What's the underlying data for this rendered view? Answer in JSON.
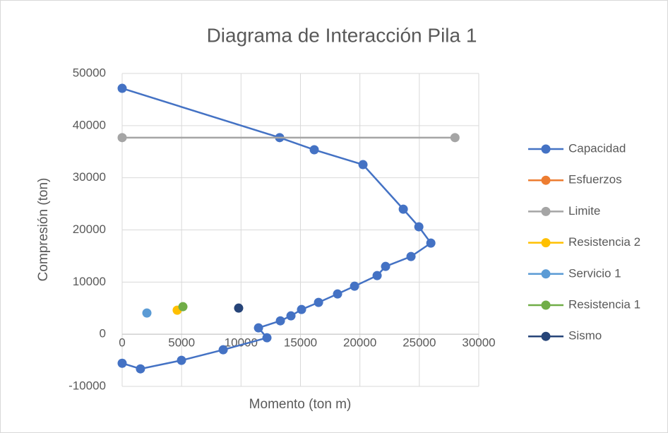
{
  "chart_data": {
    "type": "scatter",
    "title": "Diagrama de Interacción Pila 1",
    "xlabel": "Momento (ton m)",
    "ylabel": "Compresión (ton)",
    "xlim": [
      0,
      30000
    ],
    "xticks": [
      0,
      5000,
      10000,
      15000,
      20000,
      25000,
      30000
    ],
    "ylim": [
      -10000,
      50000
    ],
    "yticks": [
      -10000,
      0,
      10000,
      20000,
      30000,
      40000,
      50000
    ],
    "grid": true,
    "legend": "right",
    "series": [
      {
        "name": "Capacidad",
        "color": "#4472c4",
        "x": [
          0,
          13250,
          16160,
          20260,
          23650,
          24960,
          25970,
          24300,
          22160,
          21450,
          19550,
          18120,
          16520,
          15090,
          14200,
          13310,
          11470,
          12180,
          8500,
          4990,
          1540,
          0
        ],
        "values": [
          47150,
          37700,
          35370,
          32520,
          23980,
          20600,
          17480,
          14900,
          13000,
          11250,
          9210,
          7720,
          6100,
          4740,
          3520,
          2570,
          1220,
          -680,
          -2980,
          -5010,
          -6640,
          -5560
        ]
      },
      {
        "name": "Esfuerzos",
        "color": "#ed7d31",
        "x": [],
        "values": []
      },
      {
        "name": "Limite",
        "color": "#a5a5a5",
        "x": [
          0,
          28000
        ],
        "values": [
          37700,
          37700
        ]
      },
      {
        "name": "Resistencia 2",
        "color": "#ffc000",
        "x": [
          4630
        ],
        "values": [
          4610
        ]
      },
      {
        "name": "Servicio 1",
        "color": "#5b9bd5",
        "x": [
          2080
        ],
        "values": [
          4070
        ]
      },
      {
        "name": "Resistencia 1",
        "color": "#70ad47",
        "x": [
          5110
        ],
        "values": [
          5280
        ]
      },
      {
        "name": "Sismo",
        "color": "#264478",
        "x": [
          9800
        ],
        "values": [
          5010
        ]
      }
    ]
  }
}
